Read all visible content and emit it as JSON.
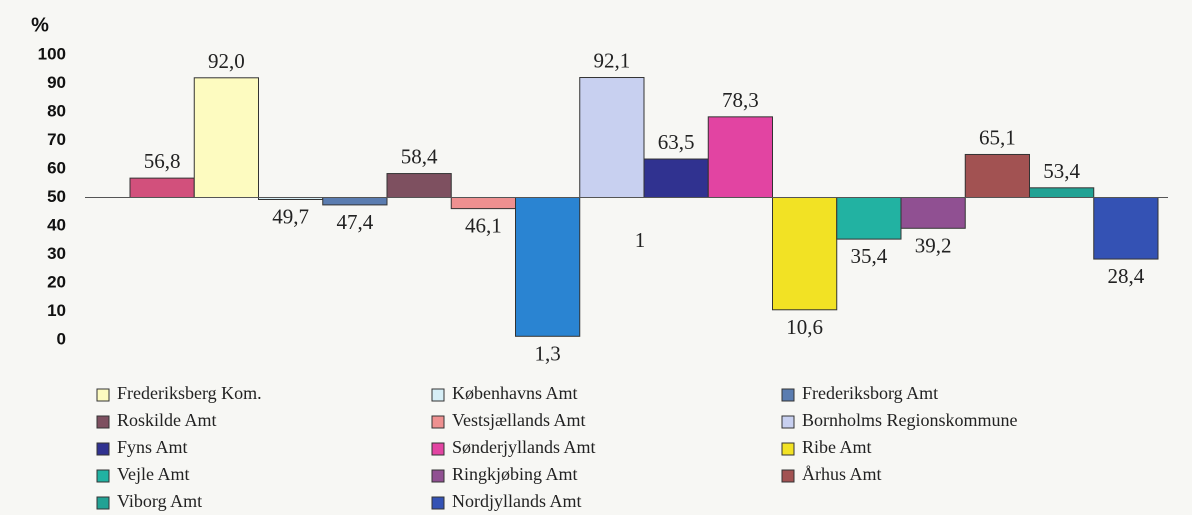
{
  "chart_data": {
    "type": "bar",
    "y_label": "%",
    "categories": [
      null,
      "Frederiksberg Kom.",
      "Københavns Amt",
      "Frederiksborg Amt",
      "Roskilde Amt",
      "Vestsjællands Amt",
      null,
      "Bornholms Regionskommune",
      "Fyns Amt",
      "Sønderjyllands Amt",
      "Ribe Amt",
      "Vejle Amt",
      "Ringkjøbing Amt",
      "Århus Amt",
      "Viborg Amt",
      "Nordjyllands Amt"
    ],
    "values": [
      56.8,
      92.0,
      49.7,
      47.4,
      58.4,
      46.1,
      1.3,
      92.1,
      63.5,
      78.3,
      10.6,
      35.4,
      39.2,
      65.1,
      53.4,
      28.4
    ],
    "value_labels": [
      "56,8",
      "92,0",
      "49,7",
      "47,4",
      "58,4",
      "46,1",
      "1,3",
      "92,1",
      "63,5",
      "78,3",
      "10,6",
      "35,4",
      "39,2",
      "65,1",
      "53,4",
      "28,4"
    ],
    "colors": [
      "#d2507c",
      "#fdfbc0",
      "#d6eef6",
      "#5a7cb0",
      "#7e5060",
      "#ee9090",
      "#2a84d2",
      "#c8d0f0",
      "#303290",
      "#e244a2",
      "#f2e224",
      "#22b2a2",
      "#905092",
      "#a25252",
      "#22a294",
      "#3452b4"
    ],
    "baseline": 50,
    "annotations": [
      "1"
    ],
    "ylim": [
      0,
      100
    ],
    "yticks": [
      0,
      10,
      20,
      30,
      40,
      50,
      60,
      70,
      80,
      90,
      100
    ]
  }
}
